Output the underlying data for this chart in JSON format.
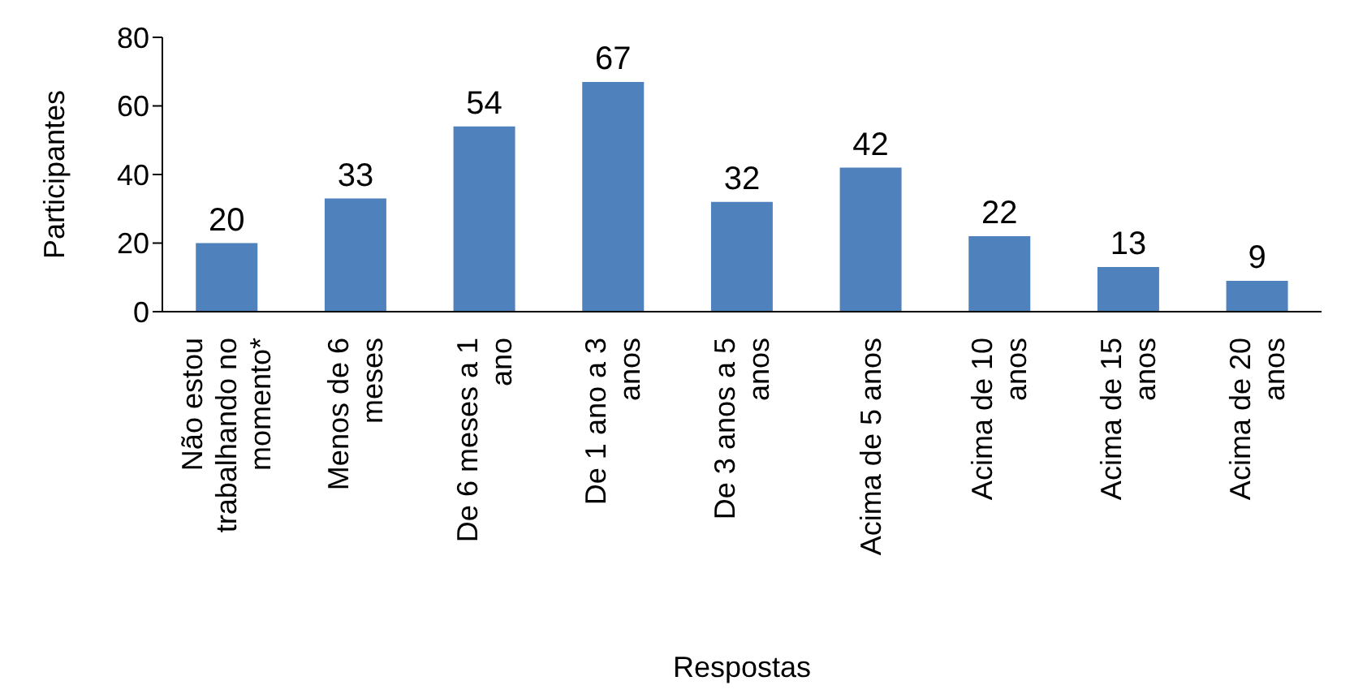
{
  "chart_data": {
    "type": "bar",
    "xlabel": "Respostas",
    "ylabel": "Participantes",
    "categories": [
      "Não estou trabalhando no momento*",
      "Menos de 6 meses",
      "De 6 meses a 1 ano",
      "De 1 ano a 3 anos",
      "De 3 anos a 5 anos",
      "Acima de 5 anos",
      "Acima de 10 anos",
      "Acima de 15 anos",
      "Acima de 20 anos"
    ],
    "values": [
      20,
      33,
      54,
      67,
      32,
      42,
      22,
      13,
      9
    ],
    "color": "#4f81bd",
    "ylim": [
      0,
      80
    ],
    "yticks": [
      0,
      20,
      40,
      60,
      80
    ],
    "data_labels": true
  }
}
